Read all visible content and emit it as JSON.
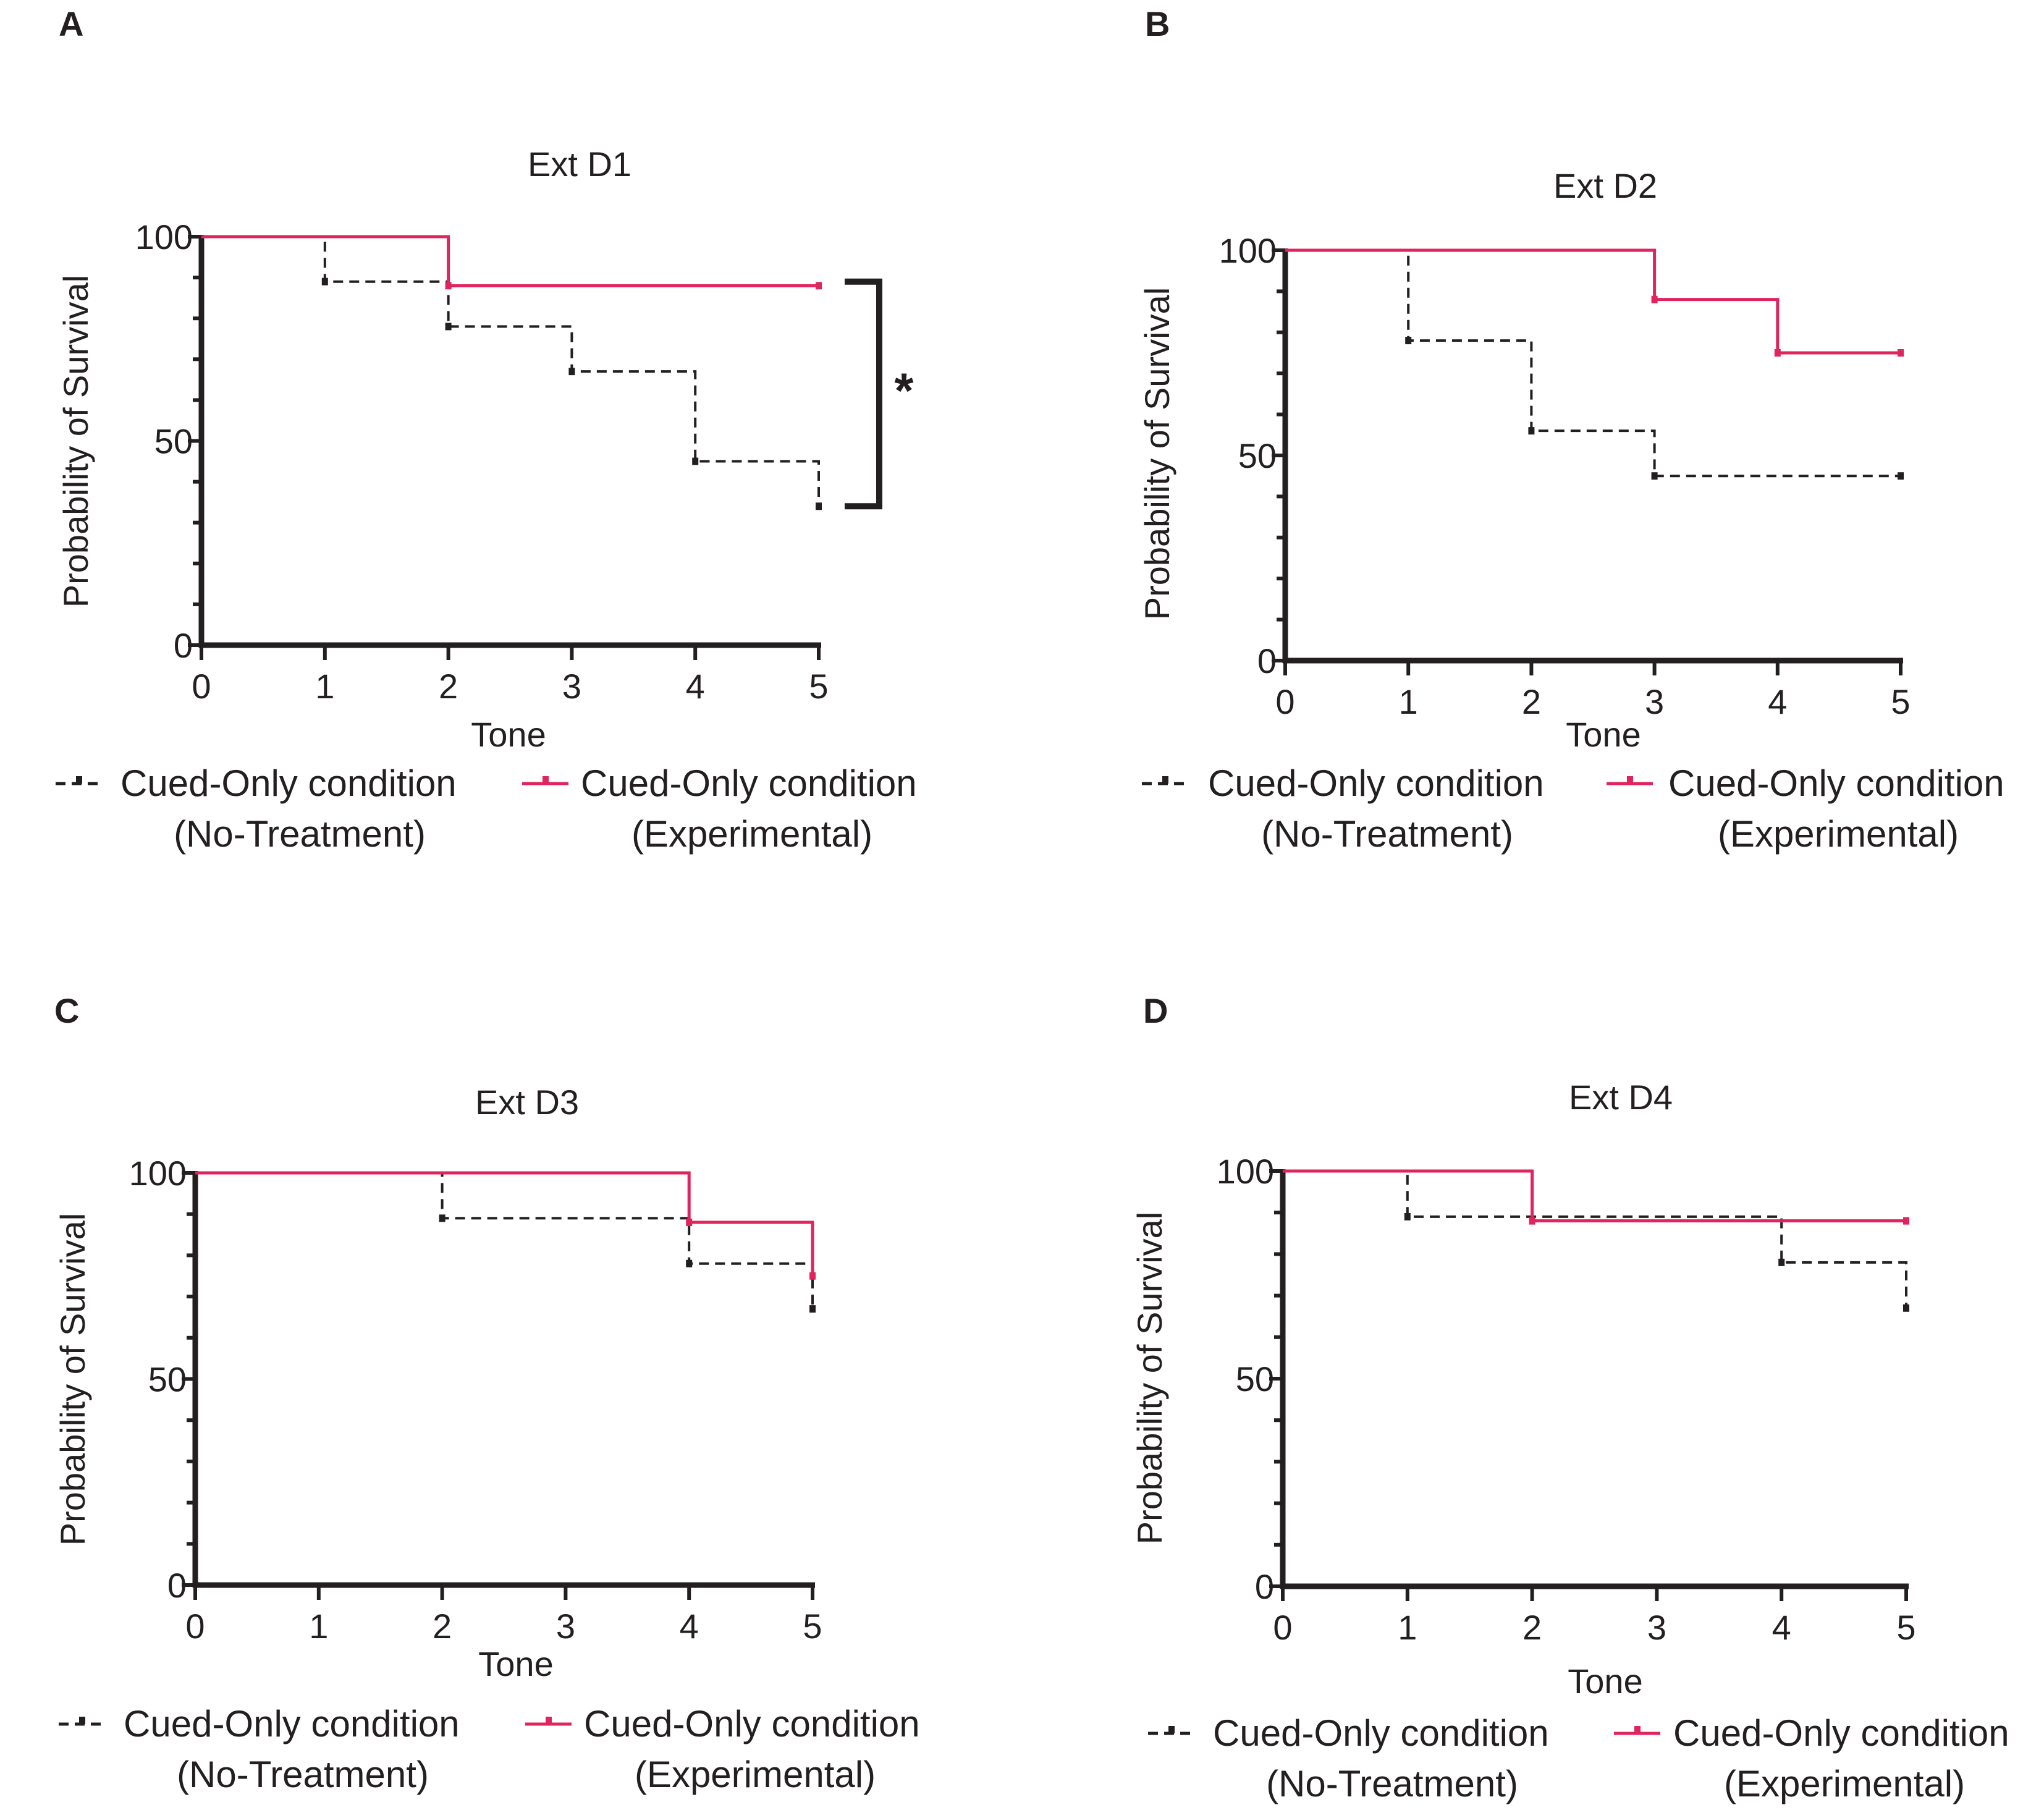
{
  "figure": {
    "colors": {
      "no_treatment": "#231f20",
      "experimental": "#e0245e",
      "axis": "#231f20"
    },
    "charts": [
      {
        "panel": "A",
        "title": "Ext D1"
      },
      {
        "panel": "B",
        "title": "Ext D2"
      },
      {
        "panel": "C",
        "title": "Ext D3"
      },
      {
        "panel": "D",
        "title": "Ext D4"
      }
    ]
  },
  "chart_data": [
    {
      "type": "line",
      "step": "kaplan-meier",
      "panel": "A",
      "title": "Ext D1",
      "xlabel": "Tone",
      "ylabel": "Probability of Survival",
      "xlim": [
        0,
        5
      ],
      "ylim": [
        0,
        100
      ],
      "x_ticks": [
        "0",
        "1",
        "2",
        "3",
        "4",
        "5"
      ],
      "y_ticks": [
        "0",
        "50",
        "100"
      ],
      "grid": false,
      "legend": "bottom",
      "annotation": {
        "text": "*",
        "type": "significance-bracket",
        "span": [
          89,
          34
        ]
      },
      "series": [
        {
          "name": "Cued-Only condition (No-Treatment)",
          "name_lines": [
            "Cued-Only condition",
            "(No-Treatment)"
          ],
          "style": "dashed",
          "color": "#231f20",
          "x": [
            0,
            1,
            2,
            3,
            4,
            5
          ],
          "y": [
            100,
            89,
            78,
            67,
            45,
            34
          ]
        },
        {
          "name": "Cued-Only condition (Experimental)",
          "name_lines": [
            "Cued-Only condition",
            "(Experimental)"
          ],
          "style": "solid",
          "color": "#e0245e",
          "x": [
            0,
            2,
            5
          ],
          "y": [
            100,
            88,
            88
          ]
        }
      ]
    },
    {
      "type": "line",
      "step": "kaplan-meier",
      "panel": "B",
      "title": "Ext D2",
      "xlabel": "Tone",
      "ylabel": "Probability of Survival",
      "xlim": [
        0,
        5
      ],
      "ylim": [
        0,
        100
      ],
      "x_ticks": [
        "0",
        "1",
        "2",
        "3",
        "4",
        "5"
      ],
      "y_ticks": [
        "0",
        "50",
        "100"
      ],
      "grid": false,
      "legend": "bottom",
      "series": [
        {
          "name": "Cued-Only condition (No-Treatment)",
          "name_lines": [
            "Cued-Only condition",
            "(No-Treatment)"
          ],
          "style": "dashed",
          "color": "#231f20",
          "x": [
            0,
            1,
            2,
            3,
            5
          ],
          "y": [
            100,
            78,
            56,
            45,
            45
          ]
        },
        {
          "name": "Cued-Only condition (Experimental)",
          "name_lines": [
            "Cued-Only condition",
            "(Experimental)"
          ],
          "style": "solid",
          "color": "#e0245e",
          "x": [
            0,
            3,
            4,
            5
          ],
          "y": [
            100,
            88,
            75,
            75
          ]
        }
      ]
    },
    {
      "type": "line",
      "step": "kaplan-meier",
      "panel": "C",
      "title": "Ext D3",
      "xlabel": "Tone",
      "ylabel": "Probability of Survival",
      "xlim": [
        0,
        5
      ],
      "ylim": [
        0,
        100
      ],
      "x_ticks": [
        "0",
        "1",
        "2",
        "3",
        "4",
        "5"
      ],
      "y_ticks": [
        "0",
        "50",
        "100"
      ],
      "grid": false,
      "legend": "bottom",
      "series": [
        {
          "name": "Cued-Only condition (No-Treatment)",
          "name_lines": [
            "Cued-Only condition",
            "(No-Treatment)"
          ],
          "style": "dashed",
          "color": "#231f20",
          "x": [
            0,
            2,
            4,
            5
          ],
          "y": [
            100,
            89,
            78,
            67
          ]
        },
        {
          "name": "Cued-Only condition (Experimental)",
          "name_lines": [
            "Cued-Only condition",
            "(Experimental)"
          ],
          "style": "solid",
          "color": "#e0245e",
          "x": [
            0,
            4,
            5
          ],
          "y": [
            100,
            88,
            75
          ]
        }
      ]
    },
    {
      "type": "line",
      "step": "kaplan-meier",
      "panel": "D",
      "title": "Ext D4",
      "xlabel": "Tone",
      "ylabel": "Probability of Survival",
      "xlim": [
        0,
        5
      ],
      "ylim": [
        0,
        100
      ],
      "x_ticks": [
        "0",
        "1",
        "2",
        "3",
        "4",
        "5"
      ],
      "y_ticks": [
        "0",
        "50",
        "100"
      ],
      "grid": false,
      "legend": "bottom",
      "series": [
        {
          "name": "Cued-Only condition (No-Treatment)",
          "name_lines": [
            "Cued-Only condition",
            "(No-Treatment)"
          ],
          "style": "dashed",
          "color": "#231f20",
          "x": [
            0,
            1,
            4,
            5
          ],
          "y": [
            100,
            89,
            78,
            67
          ]
        },
        {
          "name": "Cued-Only condition (Experimental)",
          "name_lines": [
            "Cued-Only condition",
            "(Experimental)"
          ],
          "style": "solid",
          "color": "#e0245e",
          "x": [
            0,
            2,
            5
          ],
          "y": [
            100,
            88,
            88
          ]
        }
      ]
    }
  ]
}
